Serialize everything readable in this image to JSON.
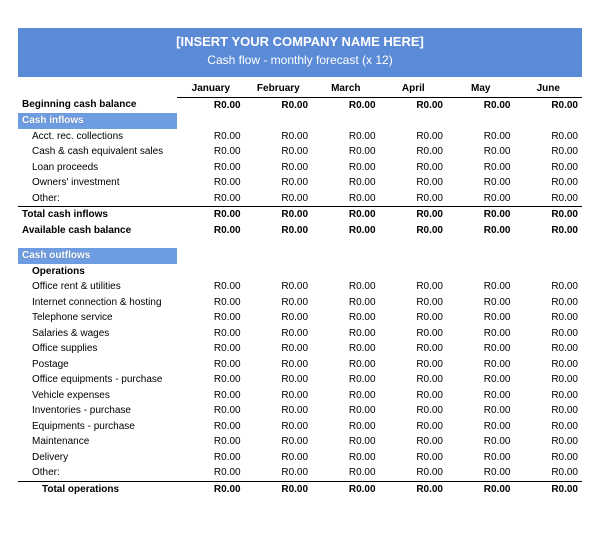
{
  "colors": {
    "header_bg": "#5b8bd6",
    "header_text": "#ffffff",
    "section_bg": "#6e9ce0",
    "text": "#000000"
  },
  "header": {
    "title": "[INSERT YOUR COMPANY NAME HERE]",
    "subtitle": "Cash flow - monthly forecast (x 12)"
  },
  "columns": [
    "January",
    "February",
    "March",
    "April",
    "May",
    "June"
  ],
  "zero": "R0.00",
  "rows": {
    "beginning_label": "Beginning cash balance",
    "inflows_section": "Cash inflows",
    "inflow_items": [
      "Acct. rec. collections",
      "Cash & cash equivalent sales",
      "Loan proceeds",
      "Owners' investment",
      "Other:"
    ],
    "total_inflows": "Total cash inflows",
    "available": "Available cash balance",
    "outflows_section": "Cash outflows",
    "operations_label": "Operations",
    "op_items": [
      "Office rent & utilities",
      "Internet connection & hosting",
      "Telephone service",
      "Salaries & wages",
      "Office supplies",
      "Postage",
      "Office equipments - purchase",
      "Vehicle expenses",
      "Inventories - purchase",
      "Equipments - purchase",
      "Maintenance",
      "Delivery",
      "Other:"
    ],
    "total_ops": "Total operations"
  }
}
